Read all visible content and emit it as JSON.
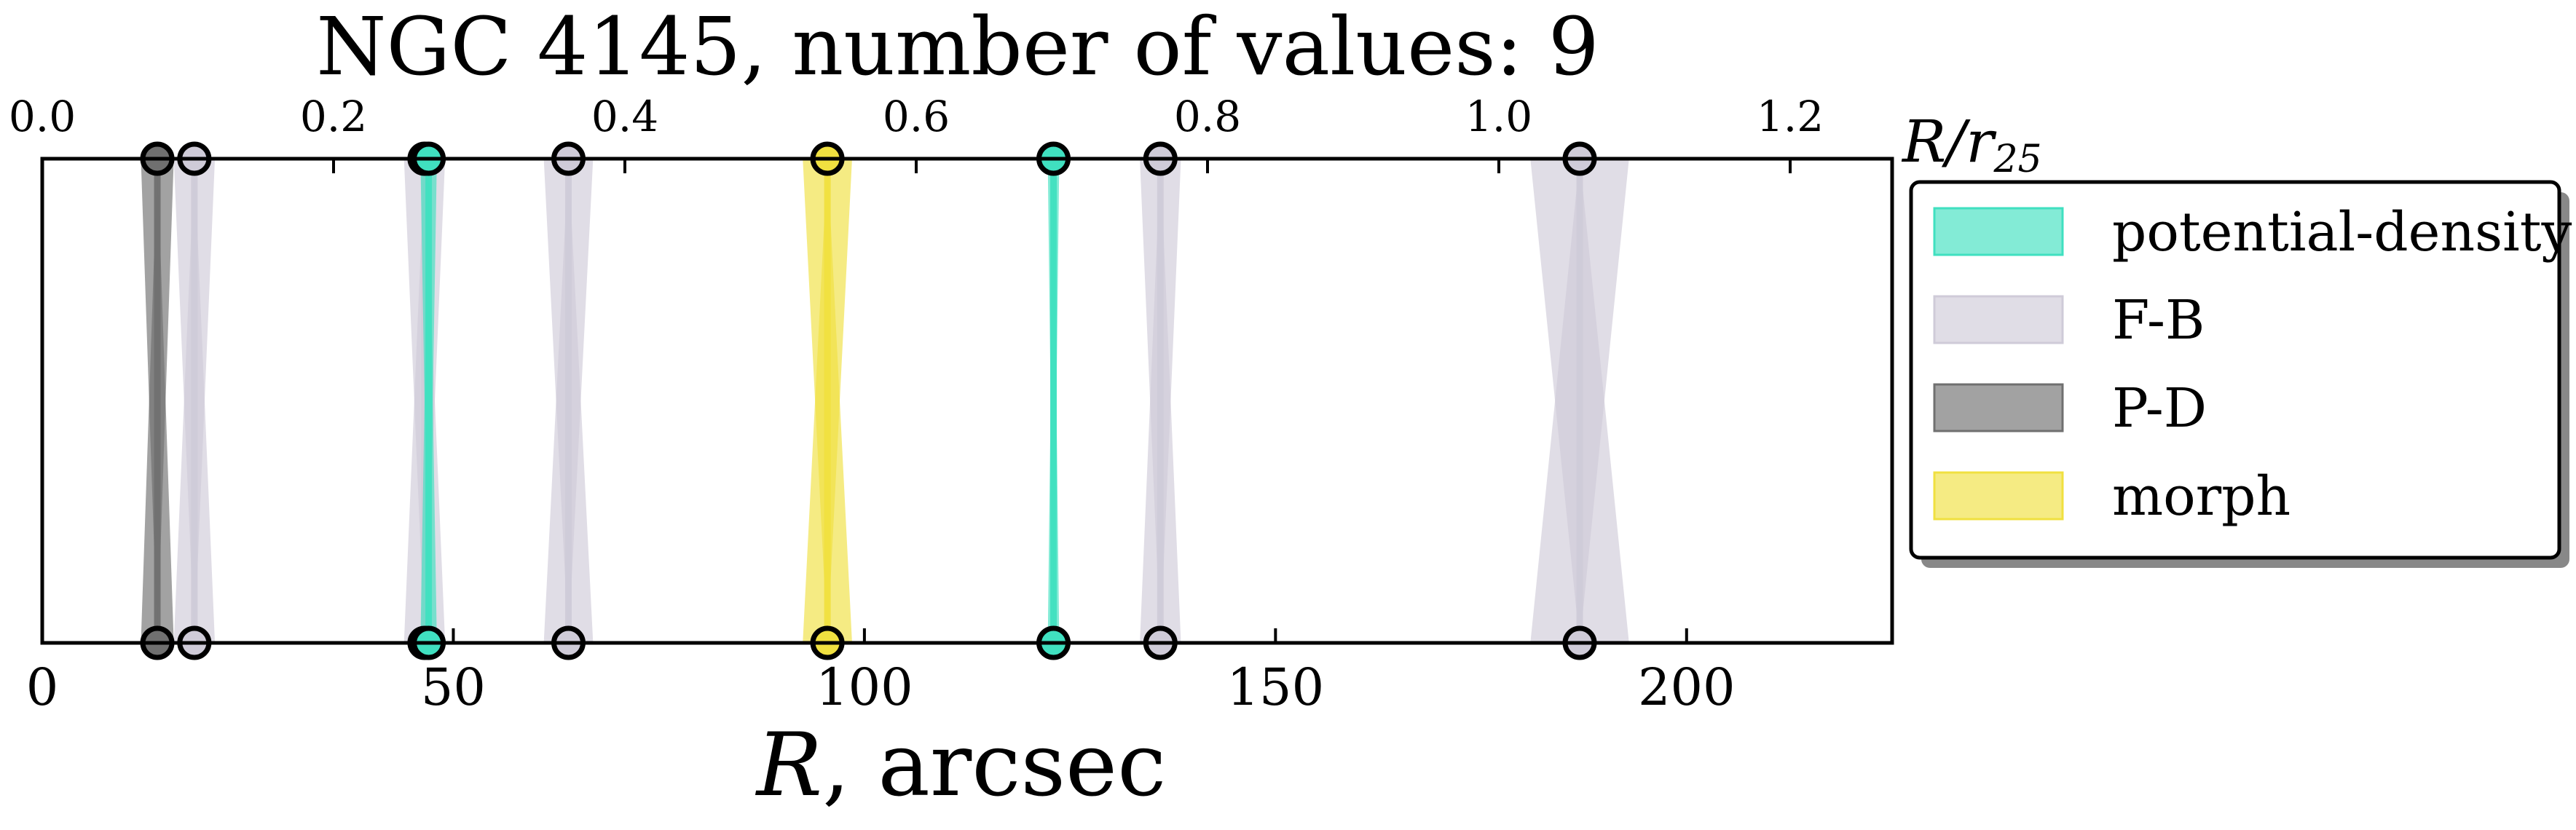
{
  "chart_data": {
    "type": "scatter",
    "title": "NGC 4145, number of values: 9",
    "xlabel": "R, arcsec",
    "xlabel_main": "R",
    "xlabel_rest": ", arcsec",
    "top_xlabel": "R/r25",
    "top_xlabel_main": "R/r",
    "top_xlabel_sub": "25",
    "xlim": [
      0,
      225
    ],
    "top_xlim": [
      0.0,
      1.27
    ],
    "bottom_ticks": [
      0,
      50,
      100,
      150,
      200
    ],
    "bottom_tick_labels": [
      "0",
      "50",
      "100",
      "150",
      "200"
    ],
    "top_ticks": [
      0.0,
      0.2,
      0.4,
      0.6,
      0.8,
      1.0,
      1.2
    ],
    "top_tick_labels": [
      "0.0",
      "0.2",
      "0.4",
      "0.6",
      "0.8",
      "1.0",
      "1.2"
    ],
    "grid": false,
    "legend_position": "right",
    "series": [
      {
        "name": "potential-density",
        "color": "#40e0c0",
        "points": [
          {
            "x": 47,
            "err": 1
          },
          {
            "x": 123,
            "err": 0.7
          }
        ]
      },
      {
        "name": "F-B",
        "color": "#cfcbd8",
        "points": [
          {
            "x": 18.5,
            "err": 2.5
          },
          {
            "x": 46.5,
            "err": 2.5
          },
          {
            "x": 64,
            "err": 3
          },
          {
            "x": 136,
            "err": 2.5
          },
          {
            "x": 187,
            "err": 6
          }
        ]
      },
      {
        "name": "P-D",
        "color": "#707070",
        "points": [
          {
            "x": 14,
            "err": 2
          }
        ]
      },
      {
        "name": "morph",
        "color": "#f0e040",
        "points": [
          {
            "x": 95.5,
            "err": 3
          }
        ]
      }
    ]
  }
}
